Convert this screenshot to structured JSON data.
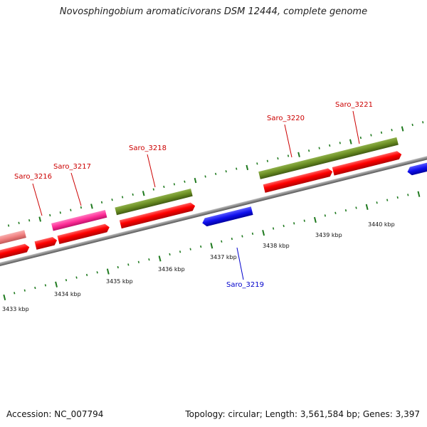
{
  "title": "Novosphingobium aromaticivorans DSM 12444, complete genome",
  "footer": {
    "accession": "Accession: NC_007794",
    "summary": "Topology: circular; Length: 3,561,584 bp; Genes: 3,397"
  },
  "colors": {
    "forward_label": "#cc0000",
    "reverse_label": "#0000cc",
    "cds": "#ff0000",
    "gene_olive": "#6b8e23",
    "gene_pink": "#ff3399",
    "gene_salmon": "#f08080",
    "reverse_cds": "#1010ee",
    "backbone": "#8a8a8a",
    "tick": "#1f7a1f"
  },
  "axis": {
    "unit": "kbp",
    "ticks": [
      "3433 kbp",
      "3434 kbp",
      "3435 kbp",
      "3436 kbp",
      "3437 kbp",
      "3438 kbp",
      "3439 kbp",
      "3440 kbp"
    ]
  },
  "genes": [
    {
      "name": "Saro_3216",
      "strand": "+"
    },
    {
      "name": "Saro_3217",
      "strand": "+"
    },
    {
      "name": "Saro_3218",
      "strand": "+"
    },
    {
      "name": "Saro_3219",
      "strand": "-"
    },
    {
      "name": "Saro_3220",
      "strand": "+"
    },
    {
      "name": "Saro_3221",
      "strand": "+"
    }
  ]
}
